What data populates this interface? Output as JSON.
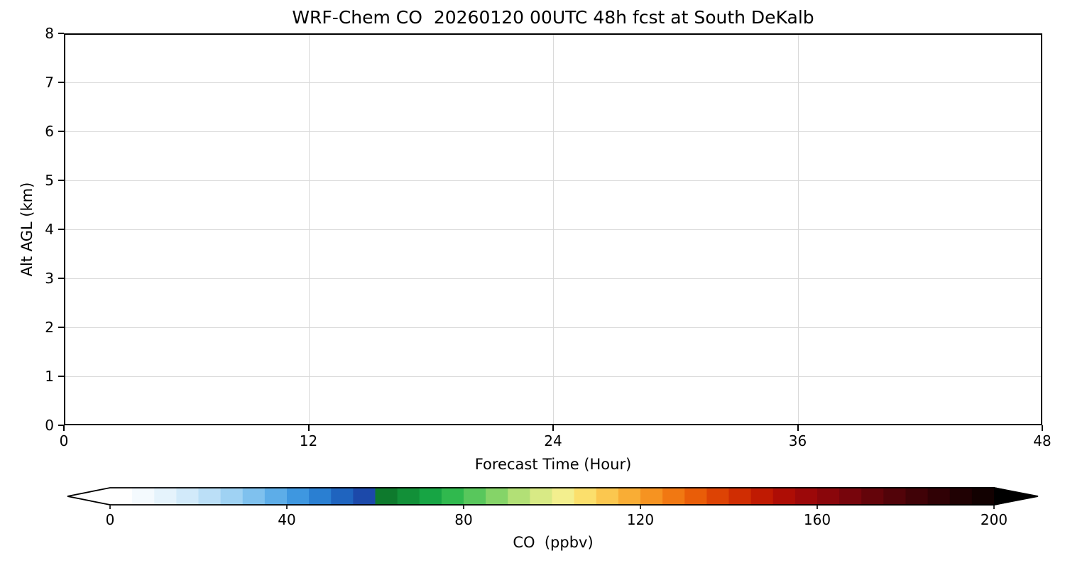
{
  "chart_data": {
    "type": "heatmap",
    "title": "WRF-Chem CO  20260120 00UTC 48h fcst at South DeKalb",
    "xlabel": "Forecast Time (Hour)",
    "ylabel": "Alt AGL (km)",
    "xlim": [
      0,
      48
    ],
    "ylim": [
      0,
      8
    ],
    "x_ticks": [
      0,
      12,
      24,
      36,
      48
    ],
    "y_ticks": [
      0,
      1,
      2,
      3,
      4,
      5,
      6,
      7,
      8
    ],
    "grid": true,
    "values": [],
    "note": "Plot area is blank white; no CO field/contour values are visible in the screenshot",
    "colors": {
      "axis": "#000000",
      "grid": "#d9d9d9",
      "background": "#ffffff"
    },
    "colorbar": {
      "label": "CO  (ppbv)",
      "ticks": [
        0,
        40,
        80,
        120,
        160,
        200
      ],
      "vmin": 0,
      "vmax": 200,
      "extend": "both",
      "under_color": "#ffffff",
      "over_color": "#000000",
      "segment_colors": [
        "#ffffff",
        "#f4fafe",
        "#e5f3fc",
        "#d2eafa",
        "#bbdff7",
        "#9fd2f3",
        "#7fc1ee",
        "#5dade8",
        "#3e97e0",
        "#2a7fd2",
        "#1f64bf",
        "#1c49aa",
        "#0e7a2d",
        "#129038",
        "#17a544",
        "#30b94e",
        "#58c75c",
        "#85d468",
        "#b2e076",
        "#d8ea85",
        "#f3ef8e",
        "#fbdf6c",
        "#fbc74f",
        "#f9ad35",
        "#f69321",
        "#f17812",
        "#e95d08",
        "#dd4304",
        "#d02d02",
        "#c01a02",
        "#ae0d05",
        "#9c0809",
        "#8a060b",
        "#77050c",
        "#64040a",
        "#520309",
        "#400207",
        "#300105",
        "#200103",
        "#120101"
      ]
    }
  }
}
